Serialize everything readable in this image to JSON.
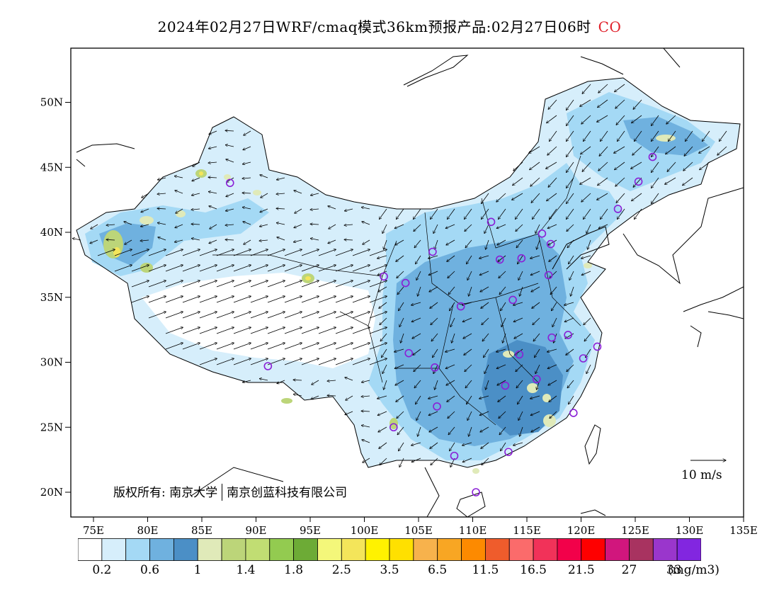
{
  "header": {
    "title": "2024年02月27日WRF/cmaq模式36km预报产品:02月27日06时",
    "species": "CO"
  },
  "map": {
    "lat_ticks": [
      "20N",
      "25N",
      "30N",
      "35N",
      "40N",
      "45N",
      "50N"
    ],
    "lon_ticks": [
      "75E",
      "80E",
      "85E",
      "90E",
      "95E",
      "100E",
      "105E",
      "110E",
      "115E",
      "120E",
      "125E",
      "130E",
      "135E"
    ],
    "copyright_left": "版权所有: 南京大学",
    "copyright_right": "南京创蓝科技有限公司",
    "wind_scale_label": "10 m/s",
    "stations": [
      {
        "lon": 87.6,
        "lat": 43.8
      },
      {
        "lon": 91.1,
        "lat": 29.7
      },
      {
        "lon": 101.8,
        "lat": 36.6
      },
      {
        "lon": 103.8,
        "lat": 36.1
      },
      {
        "lon": 106.3,
        "lat": 38.5
      },
      {
        "lon": 108.9,
        "lat": 34.3
      },
      {
        "lon": 104.1,
        "lat": 30.7
      },
      {
        "lon": 106.5,
        "lat": 29.6
      },
      {
        "lon": 106.7,
        "lat": 26.6
      },
      {
        "lon": 102.7,
        "lat": 25.0
      },
      {
        "lon": 108.3,
        "lat": 22.8
      },
      {
        "lon": 110.3,
        "lat": 20.0
      },
      {
        "lon": 113.3,
        "lat": 23.1
      },
      {
        "lon": 113.0,
        "lat": 28.2
      },
      {
        "lon": 114.3,
        "lat": 30.6
      },
      {
        "lon": 115.9,
        "lat": 28.7
      },
      {
        "lon": 119.3,
        "lat": 26.1
      },
      {
        "lon": 120.2,
        "lat": 30.3
      },
      {
        "lon": 121.5,
        "lat": 31.2
      },
      {
        "lon": 118.8,
        "lat": 32.1
      },
      {
        "lon": 117.3,
        "lat": 31.9
      },
      {
        "lon": 113.7,
        "lat": 34.8
      },
      {
        "lon": 117.0,
        "lat": 36.7
      },
      {
        "lon": 114.5,
        "lat": 38.0
      },
      {
        "lon": 112.5,
        "lat": 37.9
      },
      {
        "lon": 111.7,
        "lat": 40.8
      },
      {
        "lon": 116.4,
        "lat": 39.9
      },
      {
        "lon": 117.2,
        "lat": 39.1
      },
      {
        "lon": 123.4,
        "lat": 41.8
      },
      {
        "lon": 125.3,
        "lat": 43.9
      },
      {
        "lon": 126.6,
        "lat": 45.8
      }
    ]
  },
  "colorbar": {
    "colors": [
      "#ffffff",
      "#d6eefb",
      "#a4d9f5",
      "#6fb1df",
      "#4b8fc6",
      "#e0eab9",
      "#bcd579",
      "#c1dd73",
      "#93cb50",
      "#6dab36",
      "#f4f77a",
      "#f4e55a",
      "#fff200",
      "#ffe000",
      "#f7b24c",
      "#f8a623",
      "#fd8a00",
      "#ef5c2c",
      "#fb6b6b",
      "#f13259",
      "#f2014a",
      "#fe0000",
      "#d1167d",
      "#a83360",
      "#9a36cc",
      "#8226e0"
    ],
    "labels": [
      "0.2",
      "0.6",
      "1",
      "1.4",
      "1.8",
      "2.5",
      "3.5",
      "6.5",
      "11.5",
      "16.5",
      "21.5",
      "27",
      "33"
    ],
    "unit": "(mg/m3)"
  }
}
